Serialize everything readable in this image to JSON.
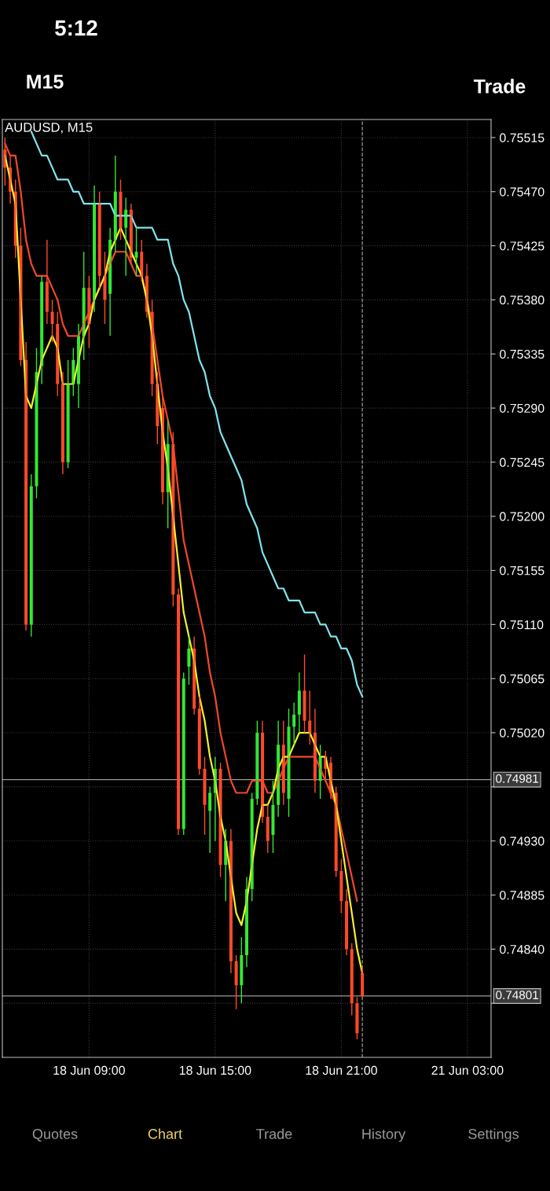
{
  "chart_data": {
    "type": "candlestick",
    "title": "AUDUSD, M15",
    "categories": [
      null,
      null,
      null,
      null,
      null,
      null,
      null,
      null,
      null,
      null,
      null,
      null,
      null,
      null,
      null,
      null,
      "18 Jun 09:00",
      null,
      null,
      null,
      null,
      null,
      null,
      null,
      null,
      null,
      null,
      null,
      null,
      null,
      null,
      null,
      null,
      null,
      null,
      null,
      null,
      null,
      null,
      null,
      "18 Jun 15:00",
      null,
      null,
      null,
      null,
      null,
      null,
      null,
      null,
      null,
      null,
      null,
      null,
      null,
      null,
      null,
      null,
      null,
      null,
      null,
      null,
      null,
      null,
      null,
      "18 Jun 21:00",
      null,
      null,
      null,
      null,
      null,
      null,
      null,
      null,
      null,
      null,
      null,
      null,
      null,
      null,
      null,
      null,
      null,
      null,
      null,
      null,
      null,
      null,
      null,
      "21 Jun 03:00",
      null,
      null,
      null,
      null
    ],
    "ohlc": [
      [
        0.75505,
        0.75515,
        0.75475,
        0.7549
      ],
      [
        0.7549,
        0.755,
        0.7546,
        0.7547
      ],
      [
        0.7547,
        0.7548,
        0.75415,
        0.75425
      ],
      [
        0.75425,
        0.7544,
        0.75325,
        0.7533
      ],
      [
        0.7533,
        0.75345,
        0.75105,
        0.7511
      ],
      [
        0.7511,
        0.75235,
        0.751,
        0.75225
      ],
      [
        0.75225,
        0.7534,
        0.75215,
        0.7532
      ],
      [
        0.75325,
        0.754,
        0.7531,
        0.75395
      ],
      [
        0.75395,
        0.7543,
        0.7536,
        0.7537
      ],
      [
        0.7537,
        0.7538,
        0.75345,
        0.7536
      ],
      [
        0.7536,
        0.7537,
        0.753,
        0.7531
      ],
      [
        0.7531,
        0.7532,
        0.75235,
        0.75245
      ],
      [
        0.75245,
        0.7533,
        0.7524,
        0.7531
      ],
      [
        0.7531,
        0.7534,
        0.753,
        0.7533
      ],
      [
        0.7531,
        0.7536,
        0.7529,
        0.7535
      ],
      [
        0.7535,
        0.7542,
        0.7533,
        0.7539
      ],
      [
        0.7539,
        0.754,
        0.7534,
        0.7536
      ],
      [
        0.7538,
        0.75475,
        0.7537,
        0.7546
      ],
      [
        0.7546,
        0.7547,
        0.7539,
        0.754
      ],
      [
        0.754,
        0.7542,
        0.7536,
        0.7538
      ],
      [
        0.75385,
        0.7544,
        0.7535,
        0.7543
      ],
      [
        0.7543,
        0.755,
        0.7542,
        0.7547
      ],
      [
        0.7547,
        0.7548,
        0.7543,
        0.7544
      ],
      [
        0.7544,
        0.75465,
        0.754,
        0.75455
      ],
      [
        0.75455,
        0.7546,
        0.7541,
        0.75415
      ],
      [
        0.75415,
        0.7544,
        0.754,
        0.7542
      ],
      [
        0.7542,
        0.7543,
        0.75395,
        0.754
      ],
      [
        0.754,
        0.7541,
        0.75365,
        0.7537
      ],
      [
        0.7537,
        0.7538,
        0.753,
        0.7531
      ],
      [
        0.7531,
        0.7532,
        0.7526,
        0.75275
      ],
      [
        0.7529,
        0.753,
        0.7521,
        0.7522
      ],
      [
        0.7522,
        0.7528,
        0.7519,
        0.7526
      ],
      [
        0.7526,
        0.7527,
        0.75125,
        0.75135
      ],
      [
        0.75135,
        0.7514,
        0.74935,
        0.7494
      ],
      [
        0.7494,
        0.7507,
        0.74935,
        0.75065
      ],
      [
        0.75075,
        0.751,
        0.7506,
        0.7509
      ],
      [
        0.7509,
        0.751,
        0.75035,
        0.7504
      ],
      [
        0.7504,
        0.7505,
        0.74985,
        0.7499
      ],
      [
        0.7499,
        0.75,
        0.74935,
        0.7496
      ],
      [
        0.74955,
        0.74975,
        0.7492,
        0.7497
      ],
      [
        0.7497,
        0.75,
        0.7493,
        0.7499
      ],
      [
        0.7499,
        0.74995,
        0.749,
        0.7491
      ],
      [
        0.7491,
        0.7494,
        0.7488,
        0.7493
      ],
      [
        0.7493,
        0.7494,
        0.7482,
        0.7483
      ],
      [
        0.7483,
        0.74835,
        0.7479,
        0.7481
      ],
      [
        0.7481,
        0.7485,
        0.74795,
        0.74835
      ],
      [
        0.74835,
        0.749,
        0.74825,
        0.7489
      ],
      [
        0.7489,
        0.7497,
        0.7488,
        0.74965
      ],
      [
        0.74965,
        0.7503,
        0.7496,
        0.7502
      ],
      [
        0.7502,
        0.7503,
        0.74945,
        0.7495
      ],
      [
        0.7495,
        0.7496,
        0.7492,
        0.7493
      ],
      [
        0.74935,
        0.7498,
        0.7492,
        0.7496
      ],
      [
        0.7496,
        0.7503,
        0.7495,
        0.7501
      ],
      [
        0.7501,
        0.7503,
        0.7496,
        0.7497
      ],
      [
        0.74965,
        0.7504,
        0.7495,
        0.75025
      ],
      [
        0.75025,
        0.75045,
        0.7501,
        0.75035
      ],
      [
        0.75035,
        0.7507,
        0.7502,
        0.75055
      ],
      [
        0.75055,
        0.75085,
        0.7502,
        0.7503
      ],
      [
        0.7503,
        0.75055,
        0.7501,
        0.7502
      ],
      [
        0.7502,
        0.7504,
        0.7497,
        0.7498
      ],
      [
        0.7498,
        0.7501,
        0.74965,
        0.75
      ],
      [
        0.75,
        0.75005,
        0.7498,
        0.7499
      ],
      [
        0.74995,
        0.75,
        0.74965,
        0.7497
      ],
      [
        0.7497,
        0.74975,
        0.749,
        0.74905
      ],
      [
        0.74905,
        0.74915,
        0.7487,
        0.7488
      ],
      [
        0.7488,
        0.7489,
        0.74835,
        0.7484
      ],
      [
        0.7484,
        0.74845,
        0.74785,
        0.74795
      ],
      [
        0.74795,
        0.748,
        0.74765,
        0.7477
      ],
      [
        0.7482,
        0.74825,
        0.748,
        0.74801
      ],
      null,
      null,
      null,
      null,
      null,
      null,
      null,
      null,
      null,
      null,
      null,
      null,
      null,
      null,
      null,
      null,
      null,
      null,
      null,
      null,
      null,
      null,
      null,
      null
    ],
    "colors": [
      "#ff4a2b",
      "#ff4a2b",
      "#ff4a2b",
      "#ff4a2b",
      "#ff4a2b",
      "#33e833",
      "#33e833",
      "#33e833",
      "#ff4a2b",
      "#ff4a2b",
      "#ff4a2b",
      "#ff4a2b",
      "#33e833",
      "#33e833",
      "#33e833",
      "#33e833",
      "#ff4a2b",
      "#33e833",
      "#ff4a2b",
      "#ff4a2b",
      "#33e833",
      "#33e833",
      "#ff4a2b",
      "#33e833",
      "#ff4a2b",
      "#33e833",
      "#ff4a2b",
      "#ff4a2b",
      "#ff4a2b",
      "#ff4a2b",
      "#ff4a2b",
      "#33e833",
      "#ff4a2b",
      "#ff4a2b",
      "#33e833",
      "#33e833",
      "#ff4a2b",
      "#ff4a2b",
      "#ff4a2b",
      "#33e833",
      "#33e833",
      "#ff4a2b",
      "#33e833",
      "#ff4a2b",
      "#ff4a2b",
      "#33e833",
      "#33e833",
      "#33e833",
      "#33e833",
      "#ff4a2b",
      "#ff4a2b",
      "#33e833",
      "#33e833",
      "#ff4a2b",
      "#33e833",
      "#33e833",
      "#33e833",
      "#ff4a2b",
      "#ff4a2b",
      "#ff4a2b",
      "#33e833",
      "#ff4a2b",
      "#ff4a2b",
      "#ff4a2b",
      "#ff4a2b",
      "#ff4a2b",
      "#ff4a2b",
      "#ff4a2b",
      "#ff4a2b",
      null,
      null,
      null,
      null,
      null,
      null,
      null,
      null,
      null,
      null,
      null,
      null,
      null,
      null,
      null,
      null,
      null,
      null,
      null,
      null,
      null,
      null,
      null,
      null
    ],
    "series": [
      {
        "type": "line",
        "color": "#7fe3ea",
        "values": [
          null,
          null,
          null,
          null,
          null,
          0.7552,
          0.7551,
          0.755,
          0.755,
          0.7549,
          0.7548,
          0.7548,
          0.7548,
          0.7547,
          0.7547,
          0.7546,
          0.7546,
          0.7546,
          0.7546,
          0.7546,
          0.7546,
          0.7545,
          0.7545,
          0.7545,
          0.7545,
          0.7544,
          0.7544,
          0.7544,
          0.7544,
          0.7543,
          0.7543,
          0.7543,
          0.7541,
          0.754,
          0.7538,
          0.7537,
          0.7535,
          0.7533,
          0.7532,
          0.753,
          0.7529,
          0.7527,
          0.7526,
          0.7525,
          0.7524,
          0.7523,
          0.7521,
          0.752,
          0.7519,
          0.7517,
          0.7516,
          0.7515,
          0.7514,
          0.7514,
          0.7513,
          0.7513,
          0.7513,
          0.7512,
          0.7512,
          0.7512,
          0.7511,
          0.7511,
          0.751,
          0.751,
          0.7509,
          0.7509,
          0.7508,
          0.7506,
          0.7505,
          null,
          null,
          null,
          null,
          null,
          null,
          null,
          null,
          null,
          null,
          null,
          null,
          null,
          null,
          null,
          null,
          null,
          null,
          null,
          null,
          null,
          null,
          null,
          null
        ]
      },
      {
        "type": "line",
        "color": "#f0482a",
        "values": [
          0.7551,
          0.755,
          0.755,
          0.7547,
          0.7543,
          0.7541,
          0.754,
          0.754,
          0.754,
          0.7539,
          0.7538,
          0.7536,
          0.7535,
          0.7535,
          0.7535,
          0.7536,
          0.7537,
          0.7538,
          0.7539,
          0.754,
          0.7541,
          0.7542,
          0.7542,
          0.7542,
          0.7541,
          0.754,
          0.754,
          0.7538,
          0.7536,
          0.7533,
          0.753,
          0.7528,
          0.7526,
          0.7522,
          0.7518,
          0.7516,
          0.7514,
          0.7512,
          0.751,
          0.7507,
          0.7505,
          0.7502,
          0.75,
          0.7498,
          0.7497,
          0.7497,
          0.7497,
          0.7498,
          0.7498,
          0.7498,
          0.7497,
          0.7497,
          0.7498,
          0.7499,
          0.75,
          0.75,
          0.75,
          0.75,
          0.75,
          0.75,
          0.7499,
          0.7498,
          0.7497,
          0.7496,
          0.7494,
          0.7492,
          0.749,
          0.7488,
          null,
          null,
          null,
          null,
          null,
          null,
          null,
          null,
          null,
          null,
          null,
          null,
          null,
          null,
          null,
          null,
          null,
          null,
          null,
          null,
          null,
          null,
          null,
          null,
          null
        ]
      },
      {
        "type": "line",
        "color": "#f5ef2a",
        "values": [
          0.755,
          0.7548,
          0.7546,
          0.7538,
          0.753,
          0.7529,
          0.7531,
          0.7533,
          0.7534,
          0.7535,
          0.7534,
          0.7531,
          0.7531,
          0.7531,
          0.7533,
          0.7535,
          0.7536,
          0.7538,
          0.7539,
          0.754,
          0.7542,
          0.7543,
          0.7544,
          0.7543,
          0.7542,
          0.7541,
          0.754,
          0.7538,
          0.7535,
          0.7531,
          0.7527,
          0.7524,
          0.752,
          0.7516,
          0.7512,
          0.751,
          0.7508,
          0.7505,
          0.7503,
          0.75,
          0.7498,
          0.7495,
          0.7493,
          0.749,
          0.7487,
          0.7486,
          0.7488,
          0.7491,
          0.7494,
          0.7496,
          0.7496,
          0.7497,
          0.7499,
          0.75,
          0.75,
          0.7501,
          0.7502,
          0.7502,
          0.7502,
          0.7501,
          0.75,
          0.75,
          0.7498,
          0.7496,
          0.7493,
          0.749,
          0.7487,
          0.7484,
          0.7482,
          null,
          null,
          null,
          null,
          null,
          null,
          null,
          null,
          null,
          null,
          null,
          null,
          null,
          null,
          null,
          null,
          null,
          null,
          null,
          null,
          null,
          null,
          null,
          null
        ]
      }
    ],
    "ylim": [
      0.7475,
      0.7553
    ],
    "yticks": [
      0.75515,
      {
        "value": 0.7547,
        "label": "0.75470"
      },
      0.75425,
      {
        "value": 0.7538,
        "label": "0.75380"
      },
      0.75335,
      {
        "value": 0.7529,
        "label": "0.75290"
      },
      0.75245,
      {
        "value": 0.752,
        "label": "0.75200"
      },
      0.75155,
      {
        "value": 0.7511,
        "label": "0.75110"
      },
      0.75065,
      {
        "value": 0.7502,
        "label": "0.75020"
      },
      {
        "value": 0.74975,
        "label": null
      },
      {
        "value": 0.7493,
        "label": "0.74930"
      },
      0.74885,
      {
        "value": 0.7484,
        "label": "0.74840"
      },
      {
        "value": 0.74795,
        "label": null
      }
    ],
    "ref_lines": [
      {
        "axis": "y",
        "value": 0.74981,
        "label": "0.74981",
        "color": "#9a9a9a",
        "line_style": "solid"
      },
      {
        "axis": "y",
        "value": 0.74801,
        "label": "0.74801",
        "color": "#9a9a9a",
        "line_style": "solid"
      }
    ],
    "grid": true,
    "annotations": [
      "5:12",
      "M15",
      "Trade",
      "Quotes",
      "Chart",
      "Trade",
      "History",
      "Settings"
    ]
  }
}
